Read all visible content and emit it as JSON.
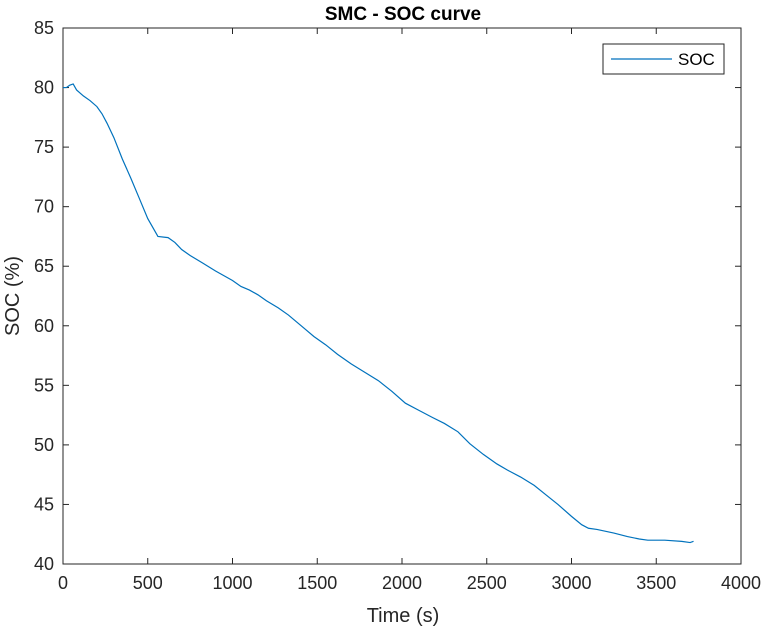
{
  "chart_data": {
    "type": "line",
    "title": "SMC - SOC curve",
    "xlabel": "Time (s)",
    "ylabel": "SOC (%)",
    "xlim": [
      0,
      4000
    ],
    "ylim": [
      40,
      85
    ],
    "x_ticks": [
      0,
      500,
      1000,
      1500,
      2000,
      2500,
      3000,
      3500,
      4000
    ],
    "y_ticks": [
      40,
      45,
      50,
      55,
      60,
      65,
      70,
      75,
      80,
      85
    ],
    "grid": false,
    "legend_position": "top-right",
    "line_color": "#0072BD",
    "series": [
      {
        "name": "SOC",
        "x": [
          0,
          20,
          40,
          60,
          80,
          120,
          160,
          200,
          230,
          260,
          300,
          350,
          400,
          450,
          500,
          560,
          620,
          660,
          700,
          750,
          820,
          900,
          1000,
          1050,
          1100,
          1150,
          1200,
          1270,
          1330,
          1380,
          1430,
          1480,
          1550,
          1620,
          1700,
          1780,
          1860,
          1940,
          2020,
          2100,
          2180,
          2250,
          2330,
          2400,
          2480,
          2560,
          2620,
          2700,
          2780,
          2850,
          2920,
          3000,
          3060,
          3100,
          3150,
          3250,
          3330,
          3400,
          3450,
          3550,
          3650,
          3700,
          3720
        ],
        "y": [
          80.0,
          80.0,
          80.2,
          80.3,
          79.8,
          79.3,
          78.9,
          78.4,
          77.8,
          77.0,
          75.8,
          74.0,
          72.4,
          70.7,
          69.0,
          67.5,
          67.4,
          67.0,
          66.4,
          65.9,
          65.3,
          64.6,
          63.8,
          63.3,
          63.0,
          62.6,
          62.1,
          61.5,
          60.9,
          60.3,
          59.7,
          59.1,
          58.4,
          57.6,
          56.8,
          56.1,
          55.4,
          54.5,
          53.5,
          52.9,
          52.3,
          51.8,
          51.1,
          50.1,
          49.2,
          48.4,
          47.9,
          47.3,
          46.6,
          45.8,
          45.0,
          44.0,
          43.3,
          43.0,
          42.9,
          42.6,
          42.3,
          42.1,
          42.0,
          42.0,
          41.9,
          41.8,
          41.9
        ]
      }
    ]
  }
}
